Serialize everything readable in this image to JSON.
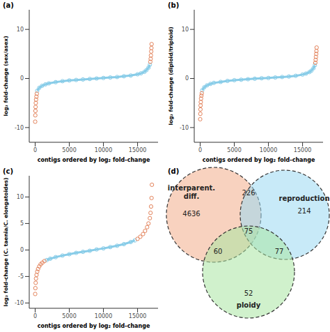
{
  "chart_data": [
    {
      "type": "scatter",
      "title": "(a)",
      "x_label": "contigs ordered by log₂ fold-change",
      "y_label": "log₂ fold-change (sex/asex)",
      "xlim": [
        -870,
        18000
      ],
      "xticks": [
        0,
        5000,
        10000,
        15000
      ],
      "ylim": [
        -13,
        14
      ],
      "yticks": [
        -10,
        0,
        10
      ],
      "grid": false,
      "series": [
        {
          "color": "#87cce8",
          "marker": "circle",
          "line_style": "solid",
          "x": [
            300,
            600,
            1000,
            1500,
            2000,
            3000,
            4000,
            5000,
            6000,
            7000,
            8000,
            9000,
            10000,
            11000,
            12000,
            13000,
            14000,
            15000,
            15500,
            16000,
            16300,
            16600,
            16800
          ],
          "values": [
            -2.5,
            -1.9,
            -1.5,
            -1.2,
            -1.0,
            -0.75,
            -0.55,
            -0.4,
            -0.3,
            -0.2,
            -0.1,
            0,
            0.1,
            0.2,
            0.3,
            0.45,
            0.6,
            0.85,
            1.05,
            1.35,
            1.7,
            2.2,
            2.8
          ]
        },
        {
          "color": "#e3825a",
          "marker": "circle",
          "x": [
            0,
            20,
            40,
            60,
            90,
            130,
            180,
            240,
            16870,
            16920,
            16960,
            17000,
            17030,
            17060
          ],
          "values": [
            -8.8,
            -7.5,
            -6.6,
            -5.8,
            -5.0,
            -4.3,
            -3.7,
            -3.1,
            3.4,
            4.0,
            4.7,
            5.5,
            6.2,
            7.0
          ]
        }
      ]
    },
    {
      "type": "scatter",
      "title": "(b)",
      "x_label": "contigs ordered by log₂ fold-change",
      "y_label": "log₂ fold-change (diploid/triploid)",
      "xlim": [
        -870,
        18000
      ],
      "xticks": [
        0,
        5000,
        10000,
        15000
      ],
      "ylim": [
        -13,
        14
      ],
      "yticks": [
        -10,
        0,
        10
      ],
      "grid": false,
      "series": [
        {
          "color": "#87cce8",
          "marker": "circle",
          "line_style": "solid",
          "x": [
            300,
            600,
            1000,
            1500,
            2000,
            3000,
            4000,
            5000,
            6000,
            7000,
            8000,
            9000,
            10000,
            11000,
            12000,
            13000,
            14000,
            15000,
            15500,
            16000,
            16300,
            16600,
            16800
          ],
          "values": [
            -2.4,
            -1.8,
            -1.4,
            -1.1,
            -0.9,
            -0.7,
            -0.5,
            -0.35,
            -0.25,
            -0.15,
            -0.05,
            0.05,
            0.1,
            0.2,
            0.3,
            0.4,
            0.55,
            0.8,
            1.0,
            1.3,
            1.6,
            2.1,
            2.7
          ]
        },
        {
          "color": "#e3825a",
          "marker": "circle",
          "x": [
            0,
            20,
            40,
            60,
            90,
            130,
            180,
            240,
            16870,
            16920,
            16960,
            17000,
            17030,
            17060
          ],
          "values": [
            -8.3,
            -7.2,
            -6.3,
            -5.5,
            -4.8,
            -4.1,
            -3.5,
            -3.0,
            3.2,
            3.8,
            4.4,
            5.0,
            5.6,
            6.3
          ]
        }
      ]
    },
    {
      "type": "scatter",
      "title": "(c)",
      "x_label": "contigs ordered by log₂ fold-change",
      "y_label": "log₂ fold-change (C. taenia/C. elongatoides)",
      "xlim": [
        -870,
        18000
      ],
      "xticks": [
        0,
        5000,
        10000,
        15000
      ],
      "ylim": [
        -11,
        14
      ],
      "yticks": [
        -10,
        -5,
        0,
        5,
        10
      ],
      "grid": false,
      "series": [
        {
          "color": "#87cce8",
          "marker": "circle",
          "line_style": "solid",
          "x": [
            1700,
            2200,
            3000,
            4000,
            5000,
            6000,
            7000,
            8000,
            9000,
            10000,
            11000,
            12000,
            13000,
            14000,
            14600
          ],
          "values": [
            -1.9,
            -1.65,
            -1.35,
            -1.05,
            -0.8,
            -0.55,
            -0.35,
            -0.15,
            0.1,
            0.3,
            0.55,
            0.8,
            1.1,
            1.5,
            1.8
          ]
        },
        {
          "color": "#e3825a",
          "marker": "circle",
          "x": [
            0,
            30,
            70,
            120,
            200,
            300,
            420,
            600,
            800,
            1050,
            1350,
            15000,
            15400,
            15800,
            16100,
            16400,
            16600,
            16800,
            16900,
            16980,
            17050,
            17100
          ],
          "values": [
            -8.3,
            -7.2,
            -6.2,
            -5.4,
            -4.7,
            -4.1,
            -3.6,
            -3.1,
            -2.7,
            -2.4,
            -2.1,
            2.1,
            2.5,
            3.0,
            3.6,
            4.3,
            5.0,
            6.0,
            7.0,
            8.2,
            9.8,
            12.3
          ]
        }
      ]
    },
    {
      "type": "venn",
      "title": "(d)",
      "sets": [
        {
          "name": "interparent. diff.",
          "color": "#f2ad8a"
        },
        {
          "name": "reproduction",
          "color": "#9ad8f2"
        },
        {
          "name": "ploidy",
          "color": "#a9e6a3"
        }
      ],
      "regions": [
        {
          "sets": [
            "interparent. diff."
          ],
          "value": 4636
        },
        {
          "sets": [
            "reproduction"
          ],
          "value": 214
        },
        {
          "sets": [
            "ploidy"
          ],
          "value": 52
        },
        {
          "sets": [
            "interparent. diff.",
            "reproduction"
          ],
          "value": 226
        },
        {
          "sets": [
            "interparent. diff.",
            "ploidy"
          ],
          "value": 60
        },
        {
          "sets": [
            "reproduction",
            "ploidy"
          ],
          "value": 77
        },
        {
          "sets": [
            "interparent. diff.",
            "reproduction",
            "ploidy"
          ],
          "value": 75
        }
      ]
    }
  ]
}
